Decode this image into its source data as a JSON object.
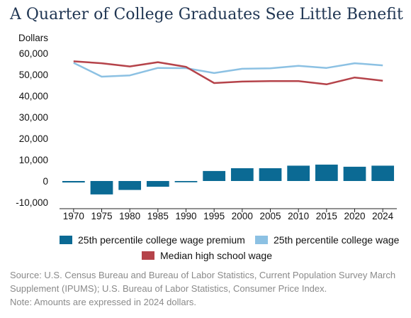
{
  "header": {
    "title": "A Quarter of College Graduates See Little Benefit"
  },
  "chart_data": {
    "type": "bar",
    "title": "A Quarter of College Graduates See Little Benefit",
    "ylabel": "Dollars",
    "xlabel": "",
    "ylim": [
      -10000,
      60000
    ],
    "yticks": [
      -10000,
      0,
      10000,
      20000,
      30000,
      40000,
      50000,
      60000
    ],
    "ytick_labels": [
      "-10,000",
      "0",
      "10,000",
      "20,000",
      "30,000",
      "40,000",
      "50,000",
      "60,000"
    ],
    "categories": [
      "1970",
      "1975",
      "1980",
      "1985",
      "1990",
      "1995",
      "2000",
      "2005",
      "2010",
      "2015",
      "2020",
      "2024"
    ],
    "grid": false,
    "legend_position": "bottom",
    "series": [
      {
        "name": "25th percentile college wage premium",
        "type": "bar",
        "color": "#0b6a94",
        "values": [
          -700,
          -6300,
          -4200,
          -2700,
          -600,
          4700,
          6000,
          6000,
          7200,
          7700,
          6700,
          7200
        ]
      },
      {
        "name": "25th percentile college wage",
        "type": "line",
        "color": "#8cc1e3",
        "values": [
          55500,
          49000,
          49600,
          53100,
          53000,
          50700,
          52700,
          52900,
          54100,
          53100,
          55300,
          54300
        ]
      },
      {
        "name": "Median high school wage",
        "type": "line",
        "color": "#b5434a",
        "values": [
          56200,
          55300,
          53800,
          55800,
          53600,
          46000,
          46700,
          46900,
          46900,
          45400,
          48600,
          47100
        ]
      }
    ]
  },
  "legend": {
    "items": [
      {
        "label": "25th percentile college wage premium",
        "color": "#0b6a94",
        "icon": "bar-swatch-icon"
      },
      {
        "label": "25th percentile college wage",
        "color": "#8cc1e3",
        "icon": "line-swatch-icon"
      },
      {
        "label": "Median high school wage",
        "color": "#b5434a",
        "icon": "line-swatch-icon"
      }
    ]
  },
  "footer": {
    "source": "Source: U.S. Census Bureau and Bureau of Labor Statistics, Current Population Survey March Supplement (IPUMS); U.S. Bureau of Labor Statistics, Consumer Price Index.",
    "note": "Note: Amounts are expressed in 2024 dollars."
  }
}
